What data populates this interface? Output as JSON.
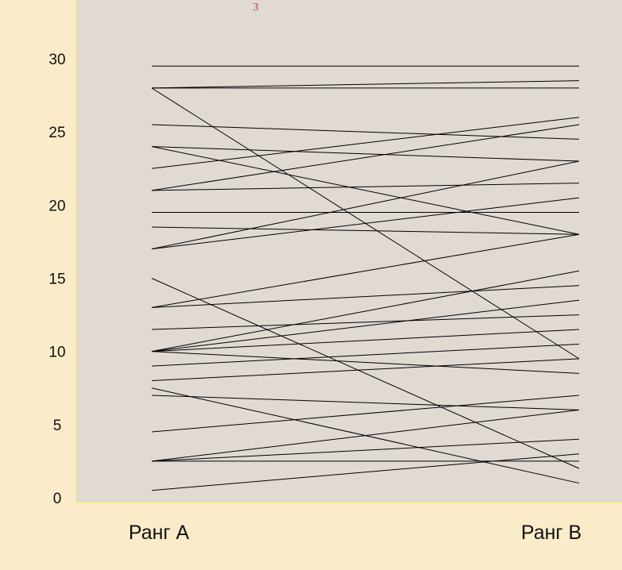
{
  "chart_data": {
    "type": "line",
    "title": "",
    "x": [
      "Ранг А",
      "Ранг В"
    ],
    "xlabel": "",
    "ylabel": "",
    "ylim": [
      0,
      30
    ],
    "yticks": [
      0,
      5,
      10,
      15,
      20,
      25,
      30
    ],
    "grid": false,
    "legend": "none",
    "series": [
      {
        "values": [
          29.5,
          29.5
        ]
      },
      {
        "values": [
          28.0,
          28.5
        ]
      },
      {
        "values": [
          28.0,
          28.0
        ]
      },
      {
        "values": [
          28.0,
          9.5
        ]
      },
      {
        "values": [
          25.5,
          24.5
        ]
      },
      {
        "values": [
          24.0,
          23.0
        ]
      },
      {
        "values": [
          24.0,
          18.0
        ]
      },
      {
        "values": [
          22.5,
          26.0
        ]
      },
      {
        "values": [
          21.0,
          25.5
        ]
      },
      {
        "values": [
          21.0,
          21.5
        ]
      },
      {
        "values": [
          19.5,
          19.5
        ]
      },
      {
        "values": [
          18.5,
          18.0
        ]
      },
      {
        "values": [
          17.0,
          23.0
        ]
      },
      {
        "values": [
          17.0,
          20.5
        ]
      },
      {
        "values": [
          15.0,
          2.0
        ]
      },
      {
        "values": [
          13.0,
          18.0
        ]
      },
      {
        "values": [
          13.0,
          14.5
        ]
      },
      {
        "values": [
          11.5,
          12.5
        ]
      },
      {
        "values": [
          10.0,
          15.5
        ]
      },
      {
        "values": [
          10.0,
          13.5
        ]
      },
      {
        "values": [
          10.0,
          11.5
        ]
      },
      {
        "values": [
          10.0,
          8.5
        ]
      },
      {
        "values": [
          9.0,
          10.5
        ]
      },
      {
        "values": [
          8.0,
          9.5
        ]
      },
      {
        "values": [
          7.5,
          1.0
        ]
      },
      {
        "values": [
          7.0,
          6.0
        ]
      },
      {
        "values": [
          4.5,
          7.0
        ]
      },
      {
        "values": [
          2.5,
          6.0
        ]
      },
      {
        "values": [
          2.5,
          4.0
        ]
      },
      {
        "values": [
          2.5,
          2.5
        ]
      },
      {
        "values": [
          0.5,
          3.0
        ]
      }
    ],
    "colors": {
      "page_bg": "#faecc8",
      "plot_bg": "#e0dad3",
      "axis_line": "#f0ea9a",
      "line": "#000000",
      "text": "#111111"
    }
  },
  "marks": {
    "top_mark": "3"
  }
}
